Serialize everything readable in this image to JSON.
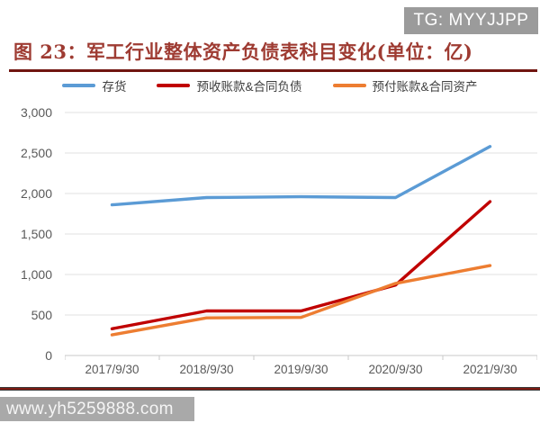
{
  "badge": {
    "text": "TG: MYYJJPP"
  },
  "watermark": {
    "text": "www.yh5259888.com"
  },
  "figure": {
    "title": "图 23：军工行业整体资产负债表科目变化(单位：亿)"
  },
  "colors": {
    "title": "#9e3b32",
    "title_rule": "#701510",
    "badge_bg": "#9b9b9b",
    "badge_text": "#ffffff",
    "watermark_bg": "#a9a9a9",
    "watermark_text": "#f5f5f5",
    "grid_line": "#e2e2e2",
    "axis_line": "#c9c9c9",
    "tick_label": "#595959",
    "legend_label": "#3f3f3f",
    "bottom_rule_red": "#7d1a12"
  },
  "chart_data": {
    "type": "line",
    "title": "军工行业整体资产负债表科目变化(单位：亿)",
    "categories": [
      "2017/9/30",
      "2018/9/30",
      "2019/9/30",
      "2020/9/30",
      "2021/9/30"
    ],
    "series": [
      {
        "name": "存货",
        "color": "#5b9bd5",
        "values": [
          1860,
          1950,
          1960,
          1950,
          2580
        ]
      },
      {
        "name": "预收账款&合同负债",
        "color": "#c00000",
        "values": [
          330,
          550,
          550,
          870,
          1900
        ]
      },
      {
        "name": "预付账款&合同资产",
        "color": "#ed7d31",
        "values": [
          255,
          465,
          470,
          890,
          1110
        ]
      }
    ],
    "xlabel": "",
    "ylabel": "",
    "ylim": [
      0,
      3000
    ],
    "ytick_step": 500,
    "ytick_labels": [
      "0",
      "500",
      "1,000",
      "1,500",
      "2,000",
      "2,500",
      "3,000"
    ],
    "grid": true,
    "legend_position": "top"
  }
}
